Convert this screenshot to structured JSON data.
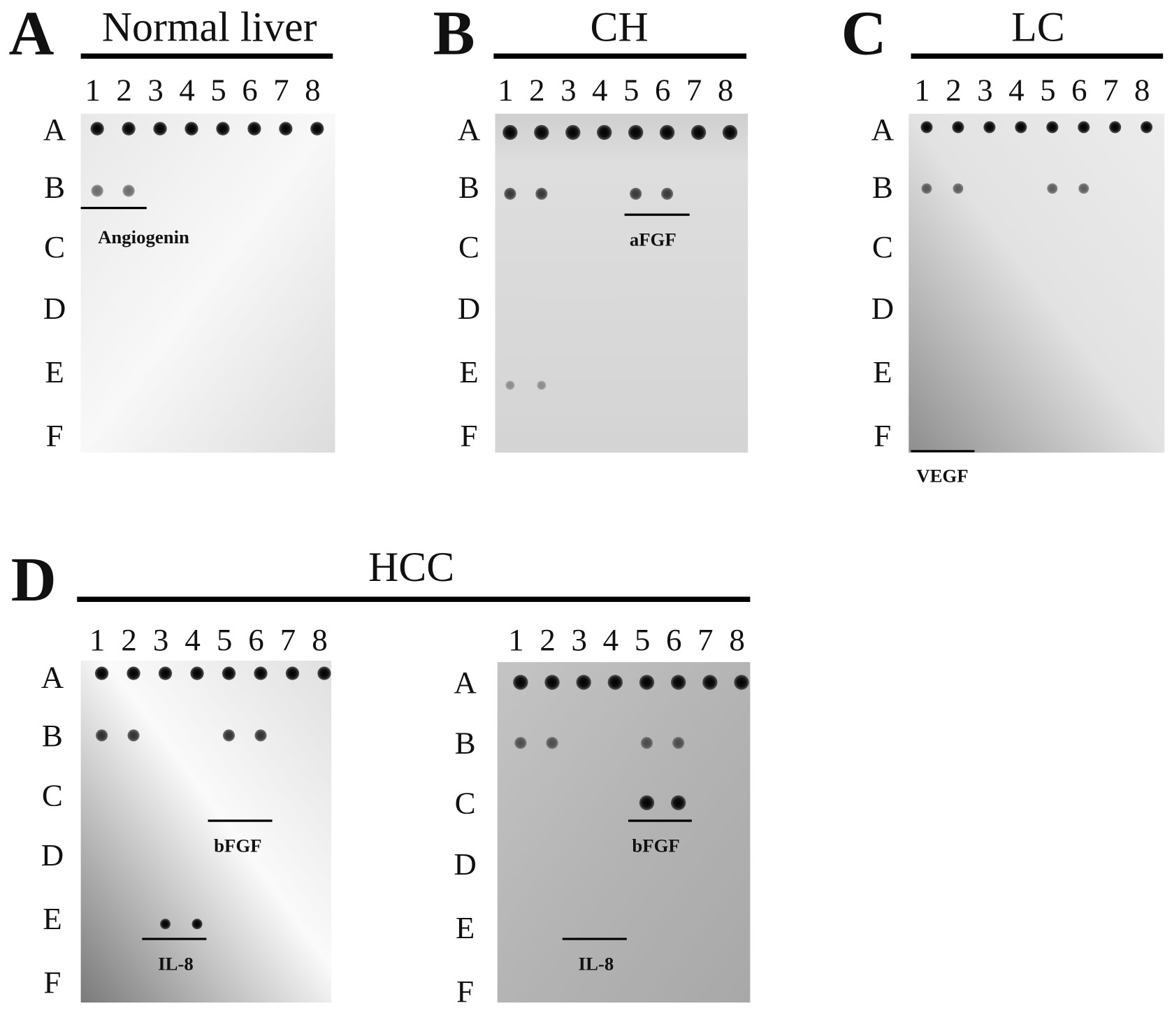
{
  "panels": [
    {
      "letter": "A",
      "title": "Normal liver",
      "blots": [
        {
          "columns": [
            "1",
            "2",
            "3",
            "4",
            "5",
            "6",
            "7",
            "8"
          ],
          "rows": [
            "A",
            "B",
            "C",
            "D",
            "E",
            "F"
          ],
          "labels": [
            "Angiogenin"
          ]
        }
      ]
    },
    {
      "letter": "B",
      "title": "CH",
      "blots": [
        {
          "columns": [
            "1",
            "2",
            "3",
            "4",
            "5",
            "6",
            "7",
            "8"
          ],
          "rows": [
            "A",
            "B",
            "C",
            "D",
            "E",
            "F"
          ],
          "labels": [
            "aFGF"
          ]
        }
      ]
    },
    {
      "letter": "C",
      "title": "LC",
      "blots": [
        {
          "columns": [
            "1",
            "2",
            "3",
            "4",
            "5",
            "6",
            "7",
            "8"
          ],
          "rows": [
            "A",
            "B",
            "C",
            "D",
            "E",
            "F"
          ],
          "labels": [
            "VEGF"
          ]
        }
      ]
    },
    {
      "letter": "D",
      "title": "HCC",
      "blots": [
        {
          "columns": [
            "1",
            "2",
            "3",
            "4",
            "5",
            "6",
            "7",
            "8"
          ],
          "rows": [
            "A",
            "B",
            "C",
            "D",
            "E",
            "F"
          ],
          "labels": [
            "bFGF",
            "IL-8"
          ]
        },
        {
          "columns": [
            "1",
            "2",
            "3",
            "4",
            "5",
            "6",
            "7",
            "8"
          ],
          "rows": [
            "A",
            "B",
            "C",
            "D",
            "E",
            "F"
          ],
          "labels": [
            "bFGF",
            "IL-8"
          ]
        }
      ]
    }
  ]
}
